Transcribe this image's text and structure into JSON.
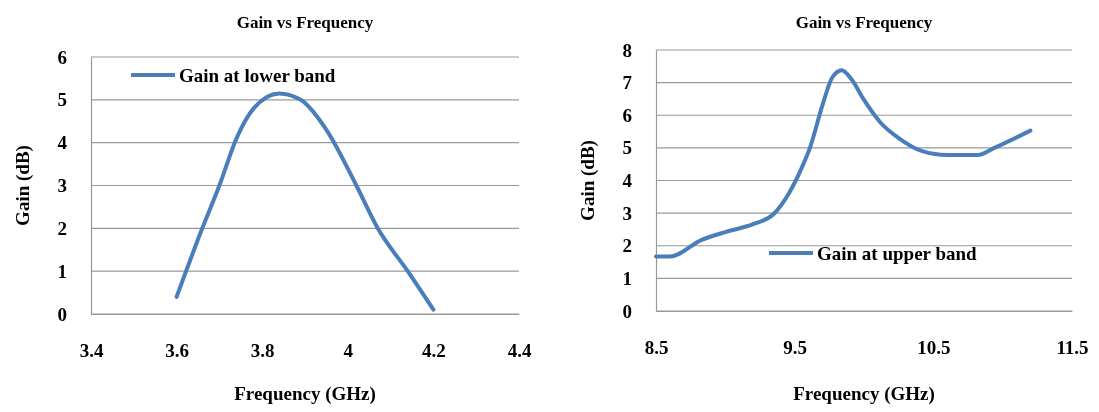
{
  "chart_data": [
    {
      "type": "line",
      "title": "Gain vs Frequency",
      "xlabel": "Frequency (GHz)",
      "ylabel": "Gain (dB)",
      "xlim": [
        3.4,
        4.4
      ],
      "xticks": [
        3.4,
        3.6,
        3.8,
        4,
        4.2,
        4.4
      ],
      "ylim": [
        0,
        6
      ],
      "yticks": [
        0,
        1,
        2,
        3,
        4,
        5,
        6
      ],
      "grid": "y",
      "legend": "top left",
      "x": [
        3.6,
        3.66,
        3.7,
        3.74,
        3.78,
        3.84,
        3.89,
        3.95,
        4.02,
        4.07,
        4.14,
        4.2
      ],
      "series": [
        {
          "name": "Gain at lower band",
          "color": "#4a7ebb",
          "values": [
            0.4,
            2.0,
            3.0,
            4.1,
            4.8,
            5.15,
            5.0,
            4.3,
            3.0,
            2.0,
            1.0,
            0.1
          ]
        }
      ]
    },
    {
      "type": "line",
      "title": "Gain vs Frequency",
      "xlabel": "Frequency (GHz)",
      "ylabel": "Gain (dB)",
      "xlim": [
        8.5,
        11.5
      ],
      "xticks": [
        8.5,
        9.5,
        10.5,
        11.5
      ],
      "ylim": [
        0,
        8
      ],
      "yticks": [
        0,
        1,
        2,
        3,
        4,
        5,
        6,
        7,
        8
      ],
      "grid": "y",
      "legend": "bottom",
      "x": [
        8.5,
        8.6,
        8.83,
        9.0,
        9.2,
        9.35,
        9.46,
        9.55,
        9.61,
        9.7,
        9.77,
        9.84,
        9.91,
        10.0,
        10.12,
        10.25,
        10.42,
        10.6,
        10.82,
        10.94,
        11.2
      ],
      "series": [
        {
          "name": "Gain at upper band",
          "color": "#4a7ebb",
          "values": [
            1.67,
            1.67,
            2.18,
            2.42,
            2.66,
            2.98,
            3.62,
            4.38,
            5.0,
            6.3,
            7.15,
            7.38,
            7.1,
            6.47,
            5.77,
            5.3,
            4.9,
            4.78,
            4.78,
            5.0,
            5.53
          ]
        }
      ]
    }
  ]
}
